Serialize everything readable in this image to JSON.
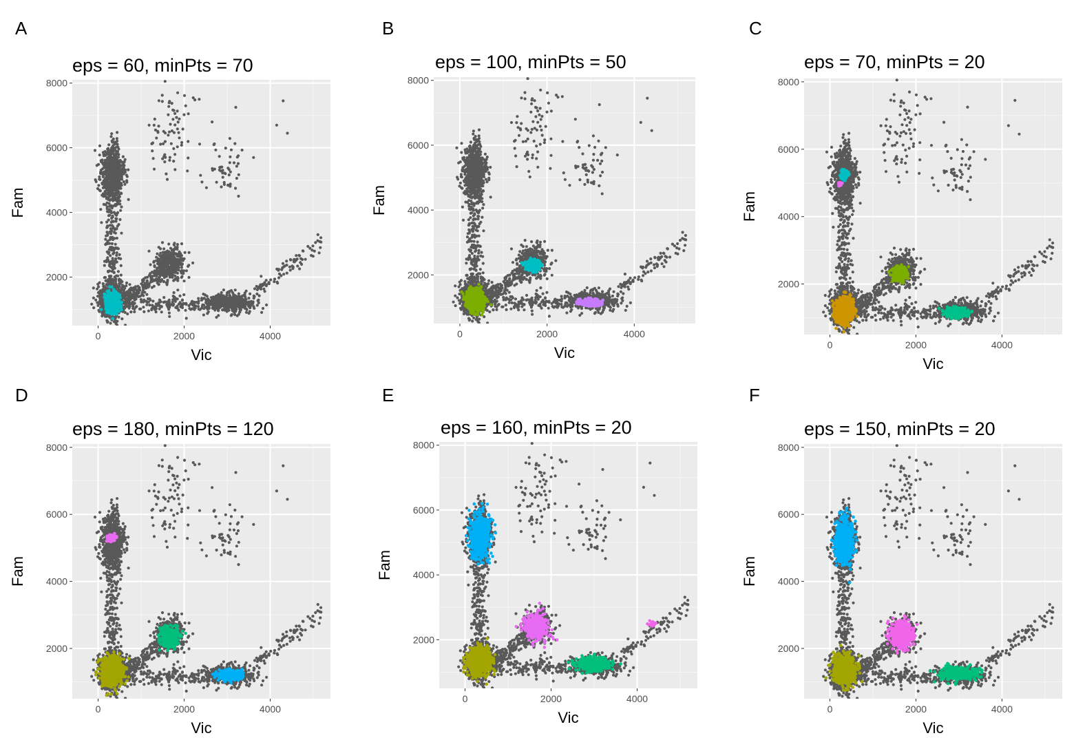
{
  "chart_data": [
    {
      "panel_label": "A",
      "type": "scatter",
      "title": "eps = 60, minPts = 70",
      "xlabel": "Vic",
      "ylabel": "Fam",
      "xlim": [
        -600,
        5400
      ],
      "ylim": [
        500,
        8100
      ],
      "xticks": [
        0,
        2000,
        4000
      ],
      "yticks": [
        2000,
        4000,
        6000,
        8000
      ],
      "grid": true,
      "noise_color": "#595959",
      "clusters": [
        {
          "color": "#00BFC4",
          "center": [
            330,
            1200
          ],
          "sd": [
            80,
            170
          ],
          "n": 500
        }
      ]
    },
    {
      "panel_label": "B",
      "type": "scatter",
      "title": "eps = 100, minPts = 50",
      "xlabel": "Vic",
      "ylabel": "Fam",
      "xlim": [
        -600,
        5400
      ],
      "ylim": [
        500,
        8100
      ],
      "xticks": [
        0,
        2000,
        4000
      ],
      "yticks": [
        2000,
        4000,
        6000,
        8000
      ],
      "grid": true,
      "noise_color": "#595959",
      "clusters": [
        {
          "color": "#7CAE00",
          "center": [
            350,
            1250
          ],
          "sd": [
            110,
            190
          ],
          "n": 700
        },
        {
          "color": "#00BFC4",
          "center": [
            1680,
            2300
          ],
          "sd": [
            90,
            90
          ],
          "n": 250
        },
        {
          "color": "#C77CFF",
          "center": [
            3000,
            1150
          ],
          "sd": [
            130,
            60
          ],
          "n": 250
        }
      ]
    },
    {
      "panel_label": "C",
      "type": "scatter",
      "title": "eps = 70, minPts = 20",
      "xlabel": "Vic",
      "ylabel": "Fam",
      "xlim": [
        -600,
        5400
      ],
      "ylim": [
        500,
        8100
      ],
      "xticks": [
        0,
        2000,
        4000
      ],
      "yticks": [
        2000,
        4000,
        6000,
        8000
      ],
      "grid": true,
      "noise_color": "#595959",
      "clusters": [
        {
          "color": "#CD9600",
          "center": [
            330,
            1200
          ],
          "sd": [
            110,
            200
          ],
          "n": 700
        },
        {
          "color": "#7CAE00",
          "center": [
            1620,
            2300
          ],
          "sd": [
            90,
            120
          ],
          "n": 250
        },
        {
          "color": "#00C08B",
          "center": [
            2950,
            1150
          ],
          "sd": [
            150,
            70
          ],
          "n": 300
        },
        {
          "color": "#00BFC4",
          "center": [
            340,
            5250
          ],
          "sd": [
            50,
            80
          ],
          "n": 80
        },
        {
          "color": "#E76BF3",
          "center": [
            230,
            4970
          ],
          "sd": [
            25,
            40
          ],
          "n": 20
        }
      ]
    },
    {
      "panel_label": "D",
      "type": "scatter",
      "title": "eps = 180, minPts = 120",
      "xlabel": "Vic",
      "ylabel": "Fam",
      "xlim": [
        -600,
        5400
      ],
      "ylim": [
        500,
        8100
      ],
      "xticks": [
        0,
        2000,
        4000
      ],
      "yticks": [
        2000,
        4000,
        6000,
        8000
      ],
      "grid": true,
      "noise_color": "#595959",
      "clusters": [
        {
          "color": "#A3A500",
          "center": [
            320,
            1300
          ],
          "sd": [
            130,
            220
          ],
          "n": 900
        },
        {
          "color": "#00BF7D",
          "center": [
            1650,
            2350
          ],
          "sd": [
            120,
            170
          ],
          "n": 350
        },
        {
          "color": "#00B0F6",
          "center": [
            3050,
            1200
          ],
          "sd": [
            150,
            90
          ],
          "n": 350
        },
        {
          "color": "#E76BF3",
          "center": [
            300,
            5300
          ],
          "sd": [
            60,
            50
          ],
          "n": 120
        }
      ]
    },
    {
      "panel_label": "E",
      "type": "scatter",
      "title": "eps = 160, minPts = 20",
      "xlabel": "Vic",
      "ylabel": "Fam",
      "xlim": [
        -600,
        5400
      ],
      "ylim": [
        500,
        8100
      ],
      "xticks": [
        0,
        2000,
        4000
      ],
      "yticks": [
        2000,
        4000,
        6000,
        8000
      ],
      "grid": true,
      "noise_color": "#595959",
      "clusters": [
        {
          "color": "#00B0F6",
          "center": [
            330,
            5200
          ],
          "sd": [
            120,
            380
          ],
          "n": 600
        },
        {
          "color": "#A3A500",
          "center": [
            330,
            1350
          ],
          "sd": [
            140,
            230
          ],
          "n": 900
        },
        {
          "color": "#E76BF3",
          "center": [
            1650,
            2400
          ],
          "sd": [
            150,
            220
          ],
          "n": 400
        },
        {
          "color": "#00BF7D",
          "center": [
            3000,
            1250
          ],
          "sd": [
            230,
            110
          ],
          "n": 450
        },
        {
          "color": "#F066EA",
          "center": [
            4350,
            2500
          ],
          "sd": [
            50,
            60
          ],
          "n": 12
        }
      ]
    },
    {
      "panel_label": "F",
      "type": "scatter",
      "title": "eps = 150, minPts = 20",
      "xlabel": "Vic",
      "ylabel": "Fam",
      "xlim": [
        -600,
        5400
      ],
      "ylim": [
        500,
        8100
      ],
      "xticks": [
        0,
        2000,
        4000
      ],
      "yticks": [
        2000,
        4000,
        6000,
        8000
      ],
      "grid": true,
      "noise_color": "#595959",
      "clusters": [
        {
          "color": "#00B0F6",
          "center": [
            330,
            5200
          ],
          "sd": [
            120,
            380
          ],
          "n": 600
        },
        {
          "color": "#A3A500",
          "center": [
            330,
            1350
          ],
          "sd": [
            140,
            230
          ],
          "n": 900
        },
        {
          "color": "#F066EA",
          "center": [
            1650,
            2400
          ],
          "sd": [
            150,
            220
          ],
          "n": 400
        },
        {
          "color": "#00BF7D",
          "center": [
            3000,
            1250
          ],
          "sd": [
            230,
            110
          ],
          "n": 450
        }
      ]
    }
  ]
}
